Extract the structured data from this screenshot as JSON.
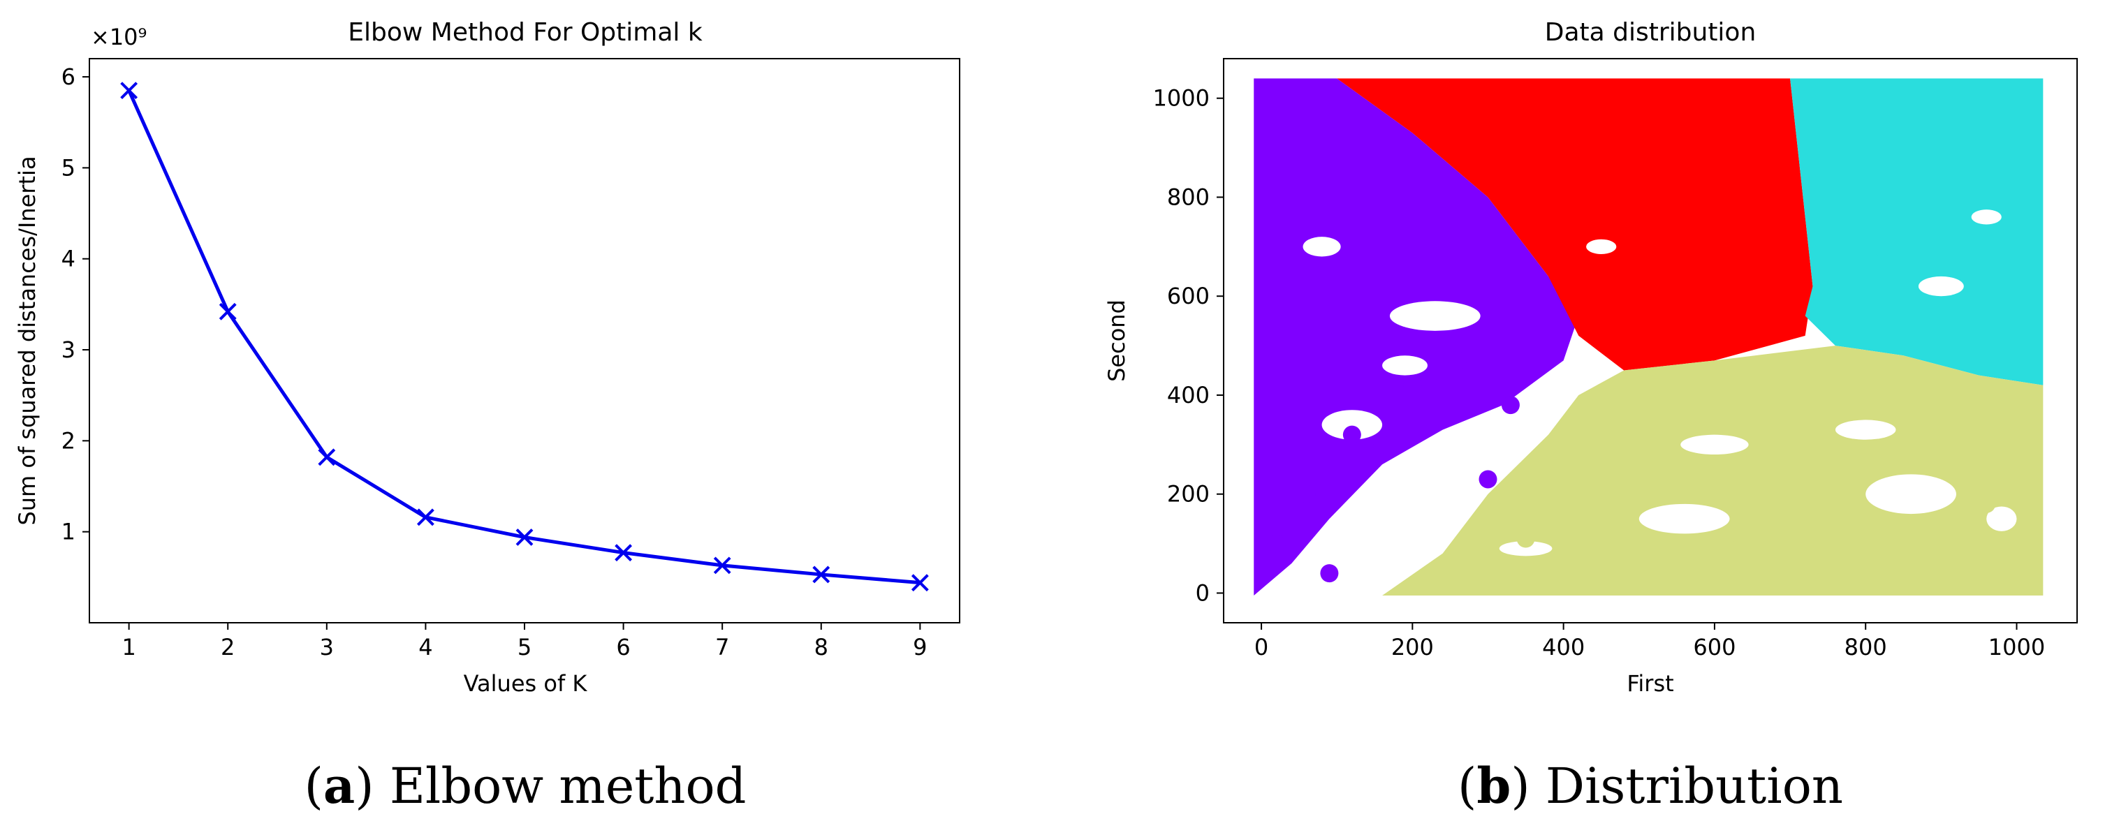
{
  "chart_data": [
    {
      "type": "line",
      "title": "Elbow Method For Optimal k",
      "xlabel": "Values of K",
      "ylabel": "Sum of squared distances/Inertia",
      "y_scale_label": "×10⁹",
      "x": [
        1,
        2,
        3,
        4,
        5,
        6,
        7,
        8,
        9
      ],
      "y": [
        5.85,
        3.42,
        1.82,
        1.16,
        0.94,
        0.77,
        0.63,
        0.53,
        0.44
      ],
      "x_ticks": [
        "1",
        "2",
        "3",
        "4",
        "5",
        "6",
        "7",
        "8",
        "9"
      ],
      "y_ticks": [
        "1",
        "2",
        "3",
        "4",
        "5",
        "6"
      ],
      "ylim": [
        0,
        6.2
      ],
      "xlim": [
        0.6,
        9.4
      ],
      "marker": "x",
      "line_color": "#0000ee",
      "caption": {
        "letter": "a",
        "text": "Elbow method"
      }
    },
    {
      "type": "scatter",
      "title": "Data distribution",
      "xlabel": "First",
      "ylabel": "Second",
      "x_ticks": [
        "0",
        "200",
        "400",
        "600",
        "800",
        "1000"
      ],
      "y_ticks": [
        "0",
        "200",
        "400",
        "600",
        "800",
        "1000"
      ],
      "xlim": [
        -50,
        1080
      ],
      "ylim": [
        -60,
        1080
      ],
      "clusters": [
        {
          "name": "cluster-0",
          "color": "#7f00ff",
          "region": "left / upper-left wedge"
        },
        {
          "name": "cluster-1",
          "color": "#ff0000",
          "region": "upper middle"
        },
        {
          "name": "cluster-2",
          "color": "#2adddd",
          "region": "upper right"
        },
        {
          "name": "cluster-3",
          "color": "#d4dd80",
          "region": "lower right"
        }
      ],
      "caption": {
        "letter": "b",
        "text": "Distribution"
      }
    }
  ]
}
